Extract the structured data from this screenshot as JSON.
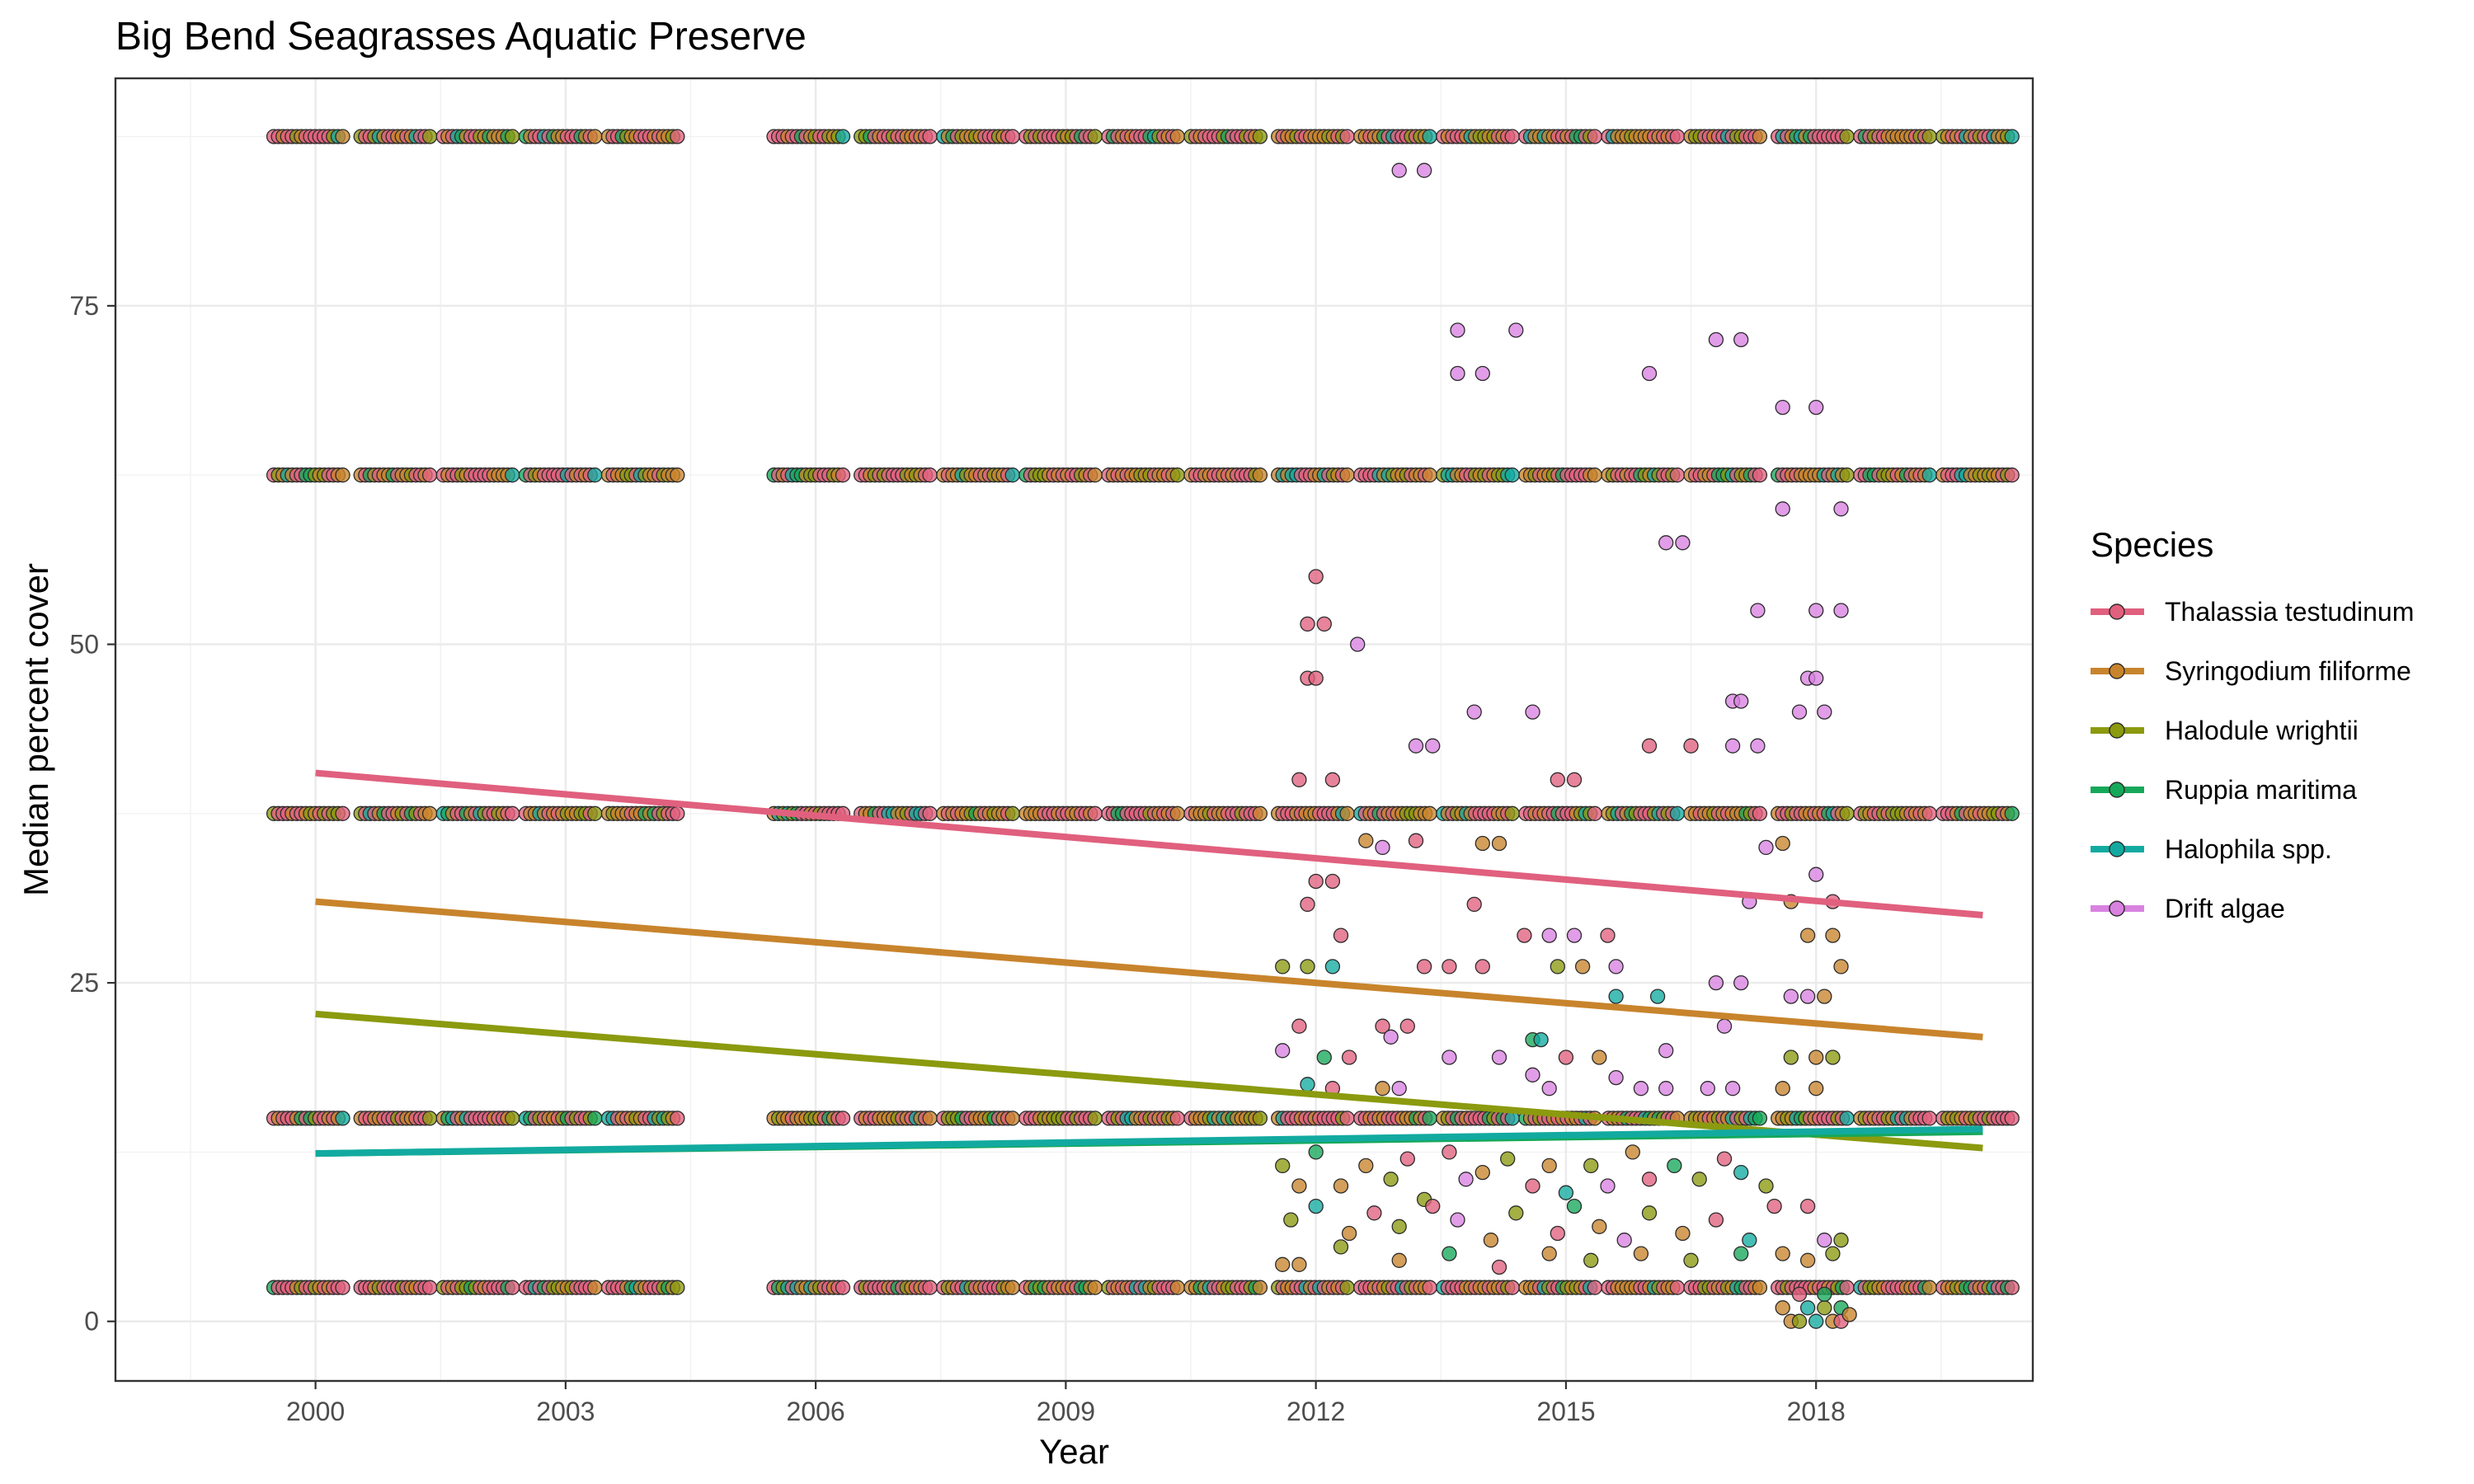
{
  "chart_data": {
    "type": "scatter",
    "title": "Big Bend Seagrasses Aquatic Preserve",
    "xlabel": "Year",
    "ylabel": "Median percent cover",
    "xlim": [
      1997.6,
      2020.6
    ],
    "ylim": [
      -4.4,
      91.8
    ],
    "x_ticks": [
      2000,
      2003,
      2006,
      2009,
      2012,
      2015,
      2018
    ],
    "y_ticks": [
      0,
      25,
      50,
      75
    ],
    "grid": true,
    "legend": {
      "title": "Species",
      "position": "right"
    },
    "series": [
      {
        "name": "Thalassia testudinum",
        "color": "#E0607E",
        "trend": [
          [
            2000,
            40.5
          ],
          [
            2020,
            30.0
          ]
        ]
      },
      {
        "name": "Syringodium filiforme",
        "color": "#C8842C",
        "trend": [
          [
            2000,
            31.0
          ],
          [
            2020,
            21.0
          ]
        ]
      },
      {
        "name": "Halodule wrightii",
        "color": "#8B9A0E",
        "trend": [
          [
            2000,
            22.7
          ],
          [
            2020,
            12.8
          ]
        ]
      },
      {
        "name": "Ruppia maritima",
        "color": "#16A85A",
        "trend": [
          [
            2000,
            12.4
          ],
          [
            2020,
            14.0
          ]
        ]
      },
      {
        "name": "Halophila spp.",
        "color": "#12AAA0",
        "trend": [
          [
            2000,
            12.4
          ],
          [
            2020,
            14.2
          ]
        ]
      },
      {
        "name": "Drift algae",
        "color": "#D982E0",
        "trend": null
      }
    ],
    "points": {
      "category_levels": [
        87.5,
        62.5,
        37.5,
        15,
        2.5
      ],
      "band_ranges": [
        [
          1999.5,
          2004.5
        ],
        [
          2005.5,
          2020.5
        ]
      ],
      "survey_years": [
        2000,
        2001,
        2002,
        2003,
        2004,
        2006,
        2007,
        2008,
        2009,
        2010,
        2011,
        2012,
        2013,
        2014,
        2015,
        2016,
        2017,
        2018,
        2019,
        2020
      ],
      "scattered": [
        [
          2012.0,
          55.0,
          0
        ],
        [
          2011.9,
          51.5,
          0
        ],
        [
          2012.1,
          51.5,
          0
        ],
        [
          2011.9,
          47.5,
          0
        ],
        [
          2012.0,
          47.5,
          0
        ],
        [
          2012.5,
          50.0,
          5
        ],
        [
          2011.8,
          40.0,
          0
        ],
        [
          2012.2,
          40.0,
          0
        ],
        [
          2013.0,
          85.0,
          5
        ],
        [
          2013.3,
          85.0,
          5
        ],
        [
          2013.7,
          73.2,
          5
        ],
        [
          2014.4,
          73.2,
          5
        ],
        [
          2013.7,
          70.0,
          5
        ],
        [
          2014.0,
          70.0,
          5
        ],
        [
          2016.0,
          70.0,
          5
        ],
        [
          2016.8,
          72.5,
          5
        ],
        [
          2017.1,
          72.5,
          5
        ],
        [
          2017.6,
          67.5,
          5
        ],
        [
          2018.0,
          67.5,
          5
        ],
        [
          2017.6,
          60.0,
          5
        ],
        [
          2018.3,
          60.0,
          5
        ],
        [
          2016.2,
          57.5,
          5
        ],
        [
          2016.4,
          57.5,
          5
        ],
        [
          2017.3,
          52.5,
          5
        ],
        [
          2018.0,
          52.5,
          5
        ],
        [
          2018.3,
          52.5,
          5
        ],
        [
          2013.2,
          42.5,
          5
        ],
        [
          2013.4,
          42.5,
          5
        ],
        [
          2013.9,
          45.0,
          5
        ],
        [
          2014.6,
          45.0,
          5
        ],
        [
          2014.9,
          40.0,
          0
        ],
        [
          2015.1,
          40.0,
          0
        ],
        [
          2016.0,
          42.5,
          0
        ],
        [
          2016.5,
          42.5,
          0
        ],
        [
          2017.0,
          42.5,
          5
        ],
        [
          2017.3,
          42.5,
          5
        ],
        [
          2017.0,
          45.8,
          5
        ],
        [
          2017.1,
          45.8,
          5
        ],
        [
          2017.9,
          47.5,
          5
        ],
        [
          2018.0,
          47.5,
          5
        ],
        [
          2018.1,
          45.0,
          5
        ],
        [
          2017.8,
          45.0,
          5
        ],
        [
          2017.4,
          35.0,
          5
        ],
        [
          2017.6,
          35.3,
          1
        ],
        [
          2018.0,
          33.0,
          5
        ],
        [
          2012.6,
          35.5,
          1
        ],
        [
          2012.8,
          35.0,
          5
        ],
        [
          2013.2,
          35.5,
          0
        ],
        [
          2014.0,
          35.3,
          1
        ],
        [
          2014.2,
          35.3,
          1
        ],
        [
          2011.9,
          30.8,
          0
        ],
        [
          2012.0,
          32.5,
          0
        ],
        [
          2012.2,
          32.5,
          0
        ],
        [
          2012.3,
          28.5,
          0
        ],
        [
          2013.9,
          30.8,
          0
        ],
        [
          2014.5,
          28.5,
          0
        ],
        [
          2014.8,
          28.5,
          5
        ],
        [
          2015.1,
          28.5,
          5
        ],
        [
          2015.5,
          28.5,
          0
        ],
        [
          2017.2,
          31.0,
          5
        ],
        [
          2017.7,
          31.0,
          1
        ],
        [
          2018.2,
          31.0,
          0
        ],
        [
          2017.9,
          28.5,
          1
        ],
        [
          2018.2,
          28.5,
          1
        ],
        [
          2011.6,
          26.2,
          2
        ],
        [
          2011.9,
          26.2,
          2
        ],
        [
          2012.2,
          26.2,
          4
        ],
        [
          2013.3,
          26.2,
          0
        ],
        [
          2013.6,
          26.2,
          0
        ],
        [
          2014.0,
          26.2,
          0
        ],
        [
          2014.9,
          26.2,
          2
        ],
        [
          2015.2,
          26.2,
          1
        ],
        [
          2015.6,
          26.2,
          5
        ],
        [
          2017.7,
          24.0,
          5
        ],
        [
          2017.9,
          24.0,
          5
        ],
        [
          2018.1,
          24.0,
          1
        ],
        [
          2018.3,
          26.2,
          1
        ],
        [
          2015.6,
          24.0,
          4
        ],
        [
          2016.1,
          24.0,
          4
        ],
        [
          2016.8,
          25.0,
          5
        ],
        [
          2017.1,
          25.0,
          5
        ],
        [
          2016.2,
          20.0,
          5
        ],
        [
          2016.9,
          21.8,
          5
        ],
        [
          2012.8,
          21.8,
          0
        ],
        [
          2013.1,
          21.8,
          0
        ],
        [
          2012.9,
          21.0,
          5
        ],
        [
          2011.6,
          20.0,
          5
        ],
        [
          2011.8,
          21.8,
          0
        ],
        [
          2012.1,
          19.5,
          3
        ],
        [
          2012.4,
          19.5,
          0
        ],
        [
          2011.9,
          17.5,
          4
        ],
        [
          2012.2,
          17.2,
          0
        ],
        [
          2012.8,
          17.2,
          1
        ],
        [
          2013.0,
          17.2,
          5
        ],
        [
          2013.6,
          19.5,
          5
        ],
        [
          2014.2,
          19.5,
          5
        ],
        [
          2014.6,
          18.2,
          5
        ],
        [
          2014.8,
          17.2,
          5
        ],
        [
          2015.0,
          19.5,
          0
        ],
        [
          2015.4,
          19.5,
          1
        ],
        [
          2015.6,
          18.0,
          5
        ],
        [
          2014.6,
          20.8,
          3
        ],
        [
          2014.7,
          20.8,
          4
        ],
        [
          2015.9,
          17.2,
          5
        ],
        [
          2016.2,
          17.2,
          5
        ],
        [
          2016.7,
          17.2,
          5
        ],
        [
          2017.0,
          17.2,
          5
        ],
        [
          2017.6,
          17.2,
          1
        ],
        [
          2017.7,
          19.5,
          2
        ],
        [
          2018.0,
          17.2,
          1
        ],
        [
          2018.2,
          19.5,
          2
        ],
        [
          2018.0,
          19.5,
          1
        ],
        [
          2011.6,
          11.5,
          2
        ],
        [
          2011.8,
          10.0,
          1
        ],
        [
          2012.0,
          12.5,
          3
        ],
        [
          2012.3,
          10.0,
          1
        ],
        [
          2012.6,
          11.5,
          1
        ],
        [
          2012.9,
          10.5,
          2
        ],
        [
          2013.1,
          12.0,
          0
        ],
        [
          2013.3,
          9.0,
          2
        ],
        [
          2013.6,
          12.5,
          0
        ],
        [
          2013.8,
          10.5,
          5
        ],
        [
          2014.0,
          11.0,
          1
        ],
        [
          2014.3,
          12.0,
          2
        ],
        [
          2014.6,
          10.0,
          0
        ],
        [
          2014.8,
          11.5,
          1
        ],
        [
          2015.0,
          9.5,
          4
        ],
        [
          2015.3,
          11.5,
          2
        ],
        [
          2015.5,
          10.0,
          5
        ],
        [
          2015.8,
          12.5,
          1
        ],
        [
          2016.0,
          10.5,
          0
        ],
        [
          2016.3,
          11.5,
          3
        ],
        [
          2016.6,
          10.5,
          2
        ],
        [
          2016.9,
          12.0,
          0
        ],
        [
          2017.1,
          11.0,
          4
        ],
        [
          2017.4,
          10.0,
          2
        ],
        [
          2011.7,
          7.5,
          2
        ],
        [
          2012.0,
          8.5,
          4
        ],
        [
          2012.4,
          6.5,
          1
        ],
        [
          2012.7,
          8.0,
          0
        ],
        [
          2013.0,
          7.0,
          2
        ],
        [
          2013.4,
          8.5,
          0
        ],
        [
          2013.7,
          7.5,
          5
        ],
        [
          2014.1,
          6.0,
          1
        ],
        [
          2014.4,
          8.0,
          2
        ],
        [
          2014.9,
          6.5,
          0
        ],
        [
          2015.1,
          8.5,
          3
        ],
        [
          2015.4,
          7.0,
          1
        ],
        [
          2015.7,
          6.0,
          5
        ],
        [
          2016.0,
          8.0,
          2
        ],
        [
          2016.4,
          6.5,
          1
        ],
        [
          2016.8,
          7.5,
          0
        ],
        [
          2017.2,
          6.0,
          4
        ],
        [
          2017.5,
          8.5,
          0
        ],
        [
          2017.9,
          8.5,
          0
        ],
        [
          2018.1,
          6.0,
          5
        ],
        [
          2018.3,
          6.0,
          2
        ],
        [
          2011.6,
          4.2,
          1
        ],
        [
          2011.8,
          4.2,
          1
        ],
        [
          2012.3,
          5.5,
          2
        ],
        [
          2013.0,
          4.5,
          1
        ],
        [
          2013.6,
          5.0,
          3
        ],
        [
          2014.2,
          4.0,
          0
        ],
        [
          2014.8,
          5.0,
          1
        ],
        [
          2015.3,
          4.5,
          2
        ],
        [
          2015.9,
          5.0,
          1
        ],
        [
          2016.5,
          4.5,
          2
        ],
        [
          2017.1,
          5.0,
          3
        ],
        [
          2017.6,
          5.0,
          1
        ],
        [
          2017.9,
          4.5,
          1
        ],
        [
          2018.2,
          5.0,
          2
        ],
        [
          2017.6,
          1.0,
          1
        ],
        [
          2017.7,
          0.0,
          1
        ],
        [
          2017.8,
          0.0,
          2
        ],
        [
          2017.9,
          1.0,
          4
        ],
        [
          2018.0,
          0.0,
          4
        ],
        [
          2018.1,
          1.0,
          2
        ],
        [
          2018.2,
          0.0,
          1
        ],
        [
          2018.3,
          1.0,
          3
        ],
        [
          2018.3,
          0.0,
          0
        ],
        [
          2018.4,
          0.5,
          1
        ],
        [
          2017.8,
          2.0,
          0
        ],
        [
          2018.1,
          2.0,
          3
        ]
      ]
    }
  }
}
